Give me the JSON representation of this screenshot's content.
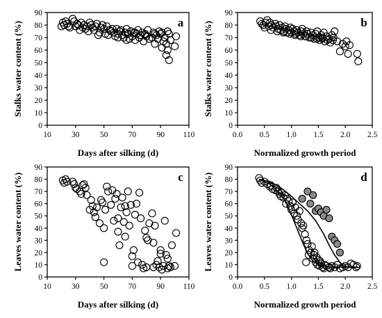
{
  "chart_data": [
    {
      "panel": "a",
      "type": "scatter",
      "xlabel": "Days after silking (d)",
      "ylabel": "Stalks water content (%)",
      "xlim": [
        10,
        110
      ],
      "ylim": [
        0,
        90
      ],
      "xticks": [
        10,
        30,
        50,
        70,
        90,
        110
      ],
      "yticks": [
        0,
        10,
        20,
        30,
        40,
        50,
        60,
        70,
        80,
        90
      ],
      "series": [
        {
          "marker": "open-circle",
          "x": [
            21,
            22,
            23,
            24,
            25,
            28,
            29,
            30,
            31,
            32,
            34,
            35,
            36,
            37,
            38,
            40,
            41,
            42,
            43,
            44,
            45,
            47,
            48,
            49,
            50,
            51,
            52,
            54,
            55,
            56,
            57,
            58,
            59,
            60,
            61,
            62,
            63,
            64,
            65,
            66,
            67,
            68,
            69,
            70,
            71,
            72,
            73,
            74,
            75,
            76,
            77,
            78,
            79,
            80,
            81,
            82,
            84,
            85,
            86,
            87,
            88,
            89,
            90,
            91,
            92,
            93,
            94,
            94,
            95,
            95,
            96,
            96,
            97,
            100,
            101,
            20,
            26,
            33,
            39,
            46,
            53,
            60,
            66,
            72,
            79,
            86,
            91
          ],
          "y": [
            82,
            80,
            83,
            81,
            79,
            85,
            83,
            79,
            81,
            80,
            82,
            78,
            80,
            77,
            79,
            82,
            80,
            78,
            76,
            79,
            81,
            74,
            78,
            80,
            77,
            73,
            79,
            76,
            75,
            77,
            74,
            71,
            77,
            73,
            75,
            76,
            72,
            70,
            74,
            77,
            73,
            69,
            75,
            71,
            74,
            68,
            73,
            76,
            70,
            72,
            74,
            67,
            73,
            71,
            76,
            69,
            70,
            74,
            65,
            72,
            69,
            75,
            73,
            62,
            67,
            70,
            56,
            65,
            60,
            75,
            52,
            73,
            68,
            63,
            71,
            79,
            78,
            76,
            75,
            72,
            72,
            70,
            68,
            74,
            72,
            73,
            74
          ]
        }
      ]
    },
    {
      "panel": "b",
      "type": "scatter",
      "xlabel": "Normalized growth period",
      "ylabel": "Stalks water content (%)",
      "xlim": [
        0.0,
        2.5
      ],
      "ylim": [
        0,
        90
      ],
      "xticks": [
        0.0,
        0.5,
        1.0,
        1.5,
        2.0,
        2.5
      ],
      "yticks": [
        0,
        10,
        20,
        30,
        40,
        50,
        60,
        70,
        80,
        90
      ],
      "series": [
        {
          "marker": "open-circle",
          "x": [
            0.42,
            0.45,
            0.48,
            0.52,
            0.55,
            0.58,
            0.6,
            0.63,
            0.66,
            0.7,
            0.72,
            0.75,
            0.78,
            0.8,
            0.83,
            0.86,
            0.88,
            0.9,
            0.92,
            0.95,
            0.98,
            1.0,
            1.02,
            1.05,
            1.08,
            1.1,
            1.12,
            1.15,
            1.18,
            1.2,
            1.22,
            1.25,
            1.28,
            1.3,
            1.33,
            1.36,
            1.4,
            1.42,
            1.45,
            1.48,
            1.5,
            1.52,
            1.55,
            1.58,
            1.6,
            1.62,
            1.65,
            1.7,
            1.72,
            1.75,
            1.78,
            1.8,
            1.85,
            1.9,
            1.95,
            2.0,
            2.02,
            2.05,
            2.08,
            2.22,
            2.24,
            0.5,
            0.62,
            0.74,
            0.85,
            0.97,
            1.07,
            1.17,
            1.27,
            1.37,
            1.47,
            1.57,
            1.67,
            1.77
          ],
          "y": [
            83,
            81,
            80,
            82,
            84,
            79,
            82,
            80,
            78,
            81,
            79,
            77,
            80,
            76,
            78,
            75,
            79,
            77,
            74,
            76,
            78,
            74,
            77,
            75,
            73,
            76,
            74,
            72,
            75,
            77,
            73,
            71,
            75,
            73,
            70,
            74,
            72,
            69,
            73,
            75,
            70,
            68,
            72,
            70,
            74,
            67,
            71,
            69,
            66,
            72,
            70,
            75,
            67,
            59,
            65,
            63,
            67,
            57,
            64,
            57,
            51,
            78,
            76,
            75,
            74,
            73,
            72,
            71,
            71,
            70,
            69,
            69,
            68,
            68
          ]
        }
      ]
    },
    {
      "panel": "c",
      "type": "scatter",
      "xlabel": "Days after silking (d)",
      "ylabel": "Leaves water content (%)",
      "xlim": [
        10,
        110
      ],
      "ylim": [
        0,
        90
      ],
      "xticks": [
        10,
        30,
        50,
        70,
        90,
        110
      ],
      "yticks": [
        0,
        10,
        20,
        30,
        40,
        50,
        60,
        70,
        80,
        90
      ],
      "series": [
        {
          "marker": "open-circle",
          "x": [
            21,
            22,
            23,
            24,
            28,
            29,
            30,
            31,
            33,
            34,
            35,
            36,
            37,
            38,
            40,
            41,
            42,
            43,
            44,
            45,
            47,
            48,
            49,
            50,
            51,
            52,
            53,
            55,
            56,
            57,
            58,
            59,
            60,
            61,
            62,
            63,
            64,
            65,
            66,
            67,
            68,
            69,
            70,
            71,
            72,
            73,
            74,
            75,
            76,
            77,
            78,
            79,
            80,
            81,
            82,
            84,
            85,
            86,
            87,
            88,
            89,
            90,
            91,
            92,
            93,
            94,
            95,
            96,
            97,
            98,
            100,
            101,
            50,
            60,
            65,
            70,
            80,
            85,
            90,
            95
          ],
          "y": [
            79,
            77,
            80,
            78,
            78,
            76,
            73,
            72,
            70,
            68,
            75,
            76,
            73,
            67,
            55,
            63,
            58,
            53,
            49,
            57,
            44,
            63,
            61,
            40,
            55,
            74,
            70,
            59,
            71,
            46,
            64,
            68,
            48,
            26,
            57,
            65,
            45,
            58,
            53,
            70,
            42,
            59,
            17,
            22,
            51,
            60,
            12,
            69,
            48,
            10,
            7,
            38,
            32,
            30,
            44,
            52,
            28,
            42,
            10,
            13,
            8,
            22,
            6,
            9,
            46,
            18,
            15,
            9,
            8,
            26,
            9,
            36,
            12,
            37,
            33,
            9,
            8,
            8,
            19,
            7
          ]
        }
      ]
    },
    {
      "panel": "d",
      "type": "scatter",
      "xlabel": "Normalized growth period",
      "ylabel": "Leaves water content (%)",
      "xlim": [
        0.0,
        2.5
      ],
      "ylim": [
        0,
        90
      ],
      "xticks": [
        0.0,
        0.5,
        1.0,
        1.5,
        2.0,
        2.5
      ],
      "yticks": [
        0,
        10,
        20,
        30,
        40,
        50,
        60,
        70,
        80,
        90
      ],
      "series": [
        {
          "marker": "open-circle",
          "x": [
            0.4,
            0.42,
            0.45,
            0.5,
            0.55,
            0.6,
            0.62,
            0.65,
            0.7,
            0.72,
            0.75,
            0.78,
            0.8,
            0.82,
            0.85,
            0.88,
            0.9,
            0.92,
            0.95,
            0.98,
            1.0,
            1.02,
            1.05,
            1.07,
            1.1,
            1.12,
            1.15,
            1.18,
            1.2,
            1.22,
            1.25,
            1.28,
            1.3,
            1.33,
            1.36,
            1.4,
            1.42,
            1.45,
            1.48,
            1.5,
            1.52,
            1.55,
            1.58,
            1.6,
            1.62,
            1.65,
            1.7,
            1.72,
            1.75,
            1.8,
            1.85,
            1.9,
            1.95,
            2.0,
            2.05,
            2.1,
            2.15,
            2.2,
            2.22,
            1.27,
            1.32,
            1.38,
            1.43,
            1.47,
            1.53
          ],
          "y": [
            81,
            79,
            77,
            78,
            76,
            74,
            75,
            72,
            71,
            73,
            70,
            68,
            66,
            69,
            65,
            67,
            60,
            64,
            62,
            58,
            55,
            61,
            52,
            57,
            50,
            47,
            54,
            44,
            40,
            42,
            35,
            30,
            27,
            22,
            20,
            15,
            18,
            12,
            10,
            14,
            9,
            11,
            8,
            7,
            10,
            9,
            8,
            7,
            9,
            8,
            10,
            7,
            8,
            9,
            8,
            11,
            10,
            8,
            9,
            12,
            18,
            25,
            20,
            16,
            13
          ]
        },
        {
          "marker": "filled-circle",
          "x": [
            1.2,
            1.3,
            1.35,
            1.4,
            1.45,
            1.5,
            1.55,
            1.6,
            1.65,
            1.7,
            1.75,
            1.8,
            1.85,
            1.9
          ],
          "y": [
            64,
            70,
            60,
            67,
            54,
            56,
            53,
            50,
            55,
            48,
            33,
            30,
            27,
            20
          ]
        }
      ],
      "fit_lines": [
        {
          "x": [
            0.4,
            0.6,
            0.8,
            0.9,
            1.0,
            1.1,
            1.2,
            1.3,
            1.4,
            1.5,
            1.6,
            1.75,
            1.9,
            2.1,
            2.25
          ],
          "y": [
            80,
            76,
            68,
            61,
            51,
            40,
            29,
            19,
            13,
            10,
            8.5,
            8,
            8,
            8,
            8
          ]
        },
        {
          "x": [
            0.4,
            0.6,
            0.8,
            1.0,
            1.15,
            1.3,
            1.45,
            1.6,
            1.7,
            1.8,
            1.9,
            1.97,
            2.05,
            2.15,
            2.25
          ],
          "y": [
            80,
            78,
            73,
            66,
            60,
            54,
            46,
            35,
            26,
            18,
            12,
            9,
            8,
            8,
            8
          ]
        }
      ]
    }
  ]
}
